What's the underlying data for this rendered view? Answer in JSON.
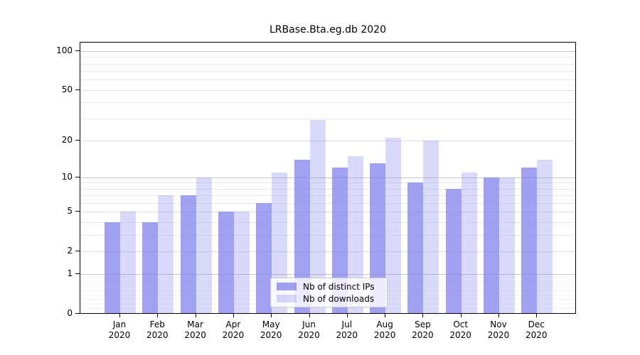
{
  "chart_data": {
    "type": "bar",
    "title": "LRBase.Bta.eg.db 2020",
    "categories": [
      "Jan",
      "Feb",
      "Mar",
      "Apr",
      "May",
      "Jun",
      "Jul",
      "Aug",
      "Sep",
      "Oct",
      "Nov",
      "Dec"
    ],
    "category_year": "2020",
    "series": [
      {
        "name": "Nb of distinct IPs",
        "color": "rgba(130,130,236,0.75)",
        "values": [
          4,
          4,
          7,
          5,
          6,
          14,
          12,
          13,
          9,
          8,
          10,
          12
        ]
      },
      {
        "name": "Nb of downloads",
        "color": "rgba(130,130,236,0.30)",
        "values": [
          5,
          7,
          10,
          5,
          11,
          29,
          15,
          21,
          20,
          11,
          10,
          14
        ]
      }
    ],
    "xlabel": "",
    "ylabel": "",
    "yscale": "log1p",
    "ylim": [
      0,
      115
    ],
    "ytick_values": [
      0,
      1,
      2,
      5,
      10,
      20,
      50,
      100
    ],
    "ytick_labels": [
      "0",
      "1",
      "2",
      "5",
      "10",
      "20",
      "50",
      "100"
    ],
    "grid": "on",
    "legend_position": "lower-center-inside",
    "colors": {
      "bar_distinct_ips": "#a3a3f0",
      "bar_downloads": "#dcdcfa",
      "grid_major": "#c6c6c6",
      "grid_minor": "#e9e9e9",
      "grid_faint": "#f5f5f5",
      "axis": "#000000",
      "background": "#ffffff",
      "legend_border": "#cccccc"
    }
  }
}
